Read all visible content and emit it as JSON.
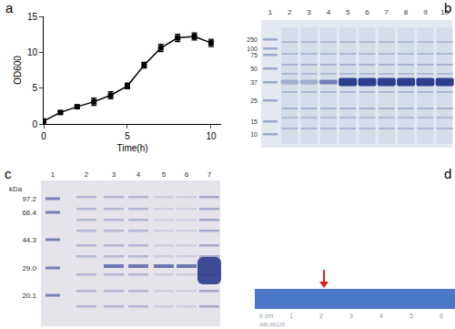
{
  "chart_data": {
    "type": "line",
    "annotations": [
      "a"
    ],
    "x": [
      0,
      1,
      2,
      3,
      4,
      5,
      6,
      7,
      8,
      9,
      10
    ],
    "values": [
      0.4,
      1.6,
      2.4,
      3.1,
      4.0,
      5.3,
      8.2,
      10.6,
      12.0,
      12.2,
      11.3
    ],
    "errors": [
      0.1,
      0.15,
      0.2,
      0.5,
      0.5,
      0.4,
      0.4,
      0.5,
      0.5,
      0.5,
      0.5
    ],
    "x_label": "Time(h)",
    "y_label": "OD600",
    "xlim": [
      0,
      10.6
    ],
    "xticks": [
      0,
      5,
      10
    ],
    "ylim": [
      0,
      15
    ],
    "yticks": [
      0,
      5,
      10,
      15
    ],
    "color": "#000000",
    "marker": "square",
    "grid": false
  },
  "panels": [
    {
      "label": "b",
      "lanes": [
        "1",
        "2",
        "3",
        "4",
        "5",
        "6",
        "7",
        "8",
        "9",
        "10"
      ],
      "marker_sizes": [
        "250",
        "100",
        "75",
        "50",
        "37",
        "25",
        "15",
        "10"
      ]
    },
    {
      "label": "c",
      "unit": "kDa",
      "lanes": [
        "1",
        "2",
        "3",
        "4",
        "5",
        "6",
        "7"
      ],
      "marker_sizes": [
        "97.2",
        "66.4",
        "44.3",
        "29.0",
        "20.1"
      ]
    },
    {
      "label": "d",
      "ruler": [
        "0 cm",
        "1",
        "2",
        "3",
        "4",
        "5",
        "6"
      ],
      "code": "ABL96125"
    }
  ]
}
